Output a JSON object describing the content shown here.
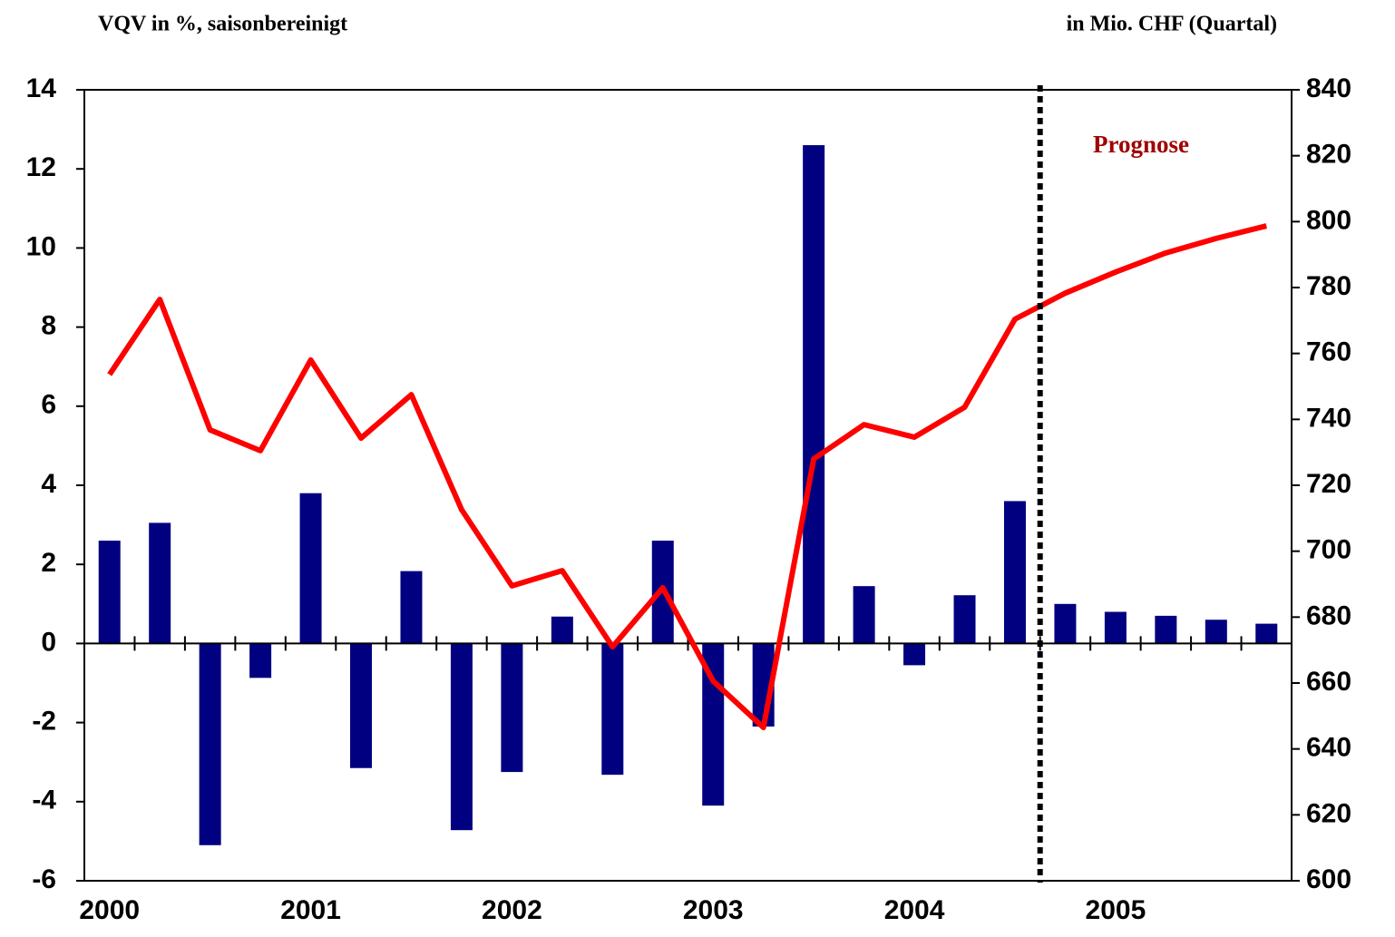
{
  "chart_data": {
    "type": "bar_line",
    "y_axis_label": "VQV in %, saisonbereinigt",
    "y2_axis_label": "in Mio. CHF (Quartal)",
    "annotation": "Prognose",
    "categories": [
      "2000",
      null,
      null,
      null,
      "2001",
      null,
      null,
      null,
      "2002",
      null,
      null,
      null,
      "2003",
      null,
      null,
      null,
      "2004",
      null,
      null,
      null,
      "2005",
      null,
      null,
      null
    ],
    "series": [
      {
        "type": "bar",
        "color": "#000080",
        "values": [
          2.6,
          3.05,
          -5.1,
          -0.87,
          3.8,
          -3.15,
          1.83,
          -4.72,
          -3.25,
          0.68,
          -3.32,
          2.6,
          -4.1,
          -2.1,
          12.6,
          1.45,
          -0.55,
          1.22,
          3.6,
          1.0,
          0.8,
          0.7,
          0.6,
          0.5
        ]
      },
      {
        "type": "line",
        "axis": "y2",
        "color": "#ff0000",
        "values": [
          753.6,
          776.4,
          736.8,
          730.5,
          758,
          734.3,
          747.5,
          712.6,
          689.5,
          694.1,
          671,
          688.9,
          660.6,
          646.5,
          728,
          738.4,
          734.6,
          743.7,
          770.4,
          778.3,
          784.7,
          790.5,
          794.9,
          798.7
        ]
      }
    ],
    "ylim": [
      -6,
      14
    ],
    "yticks": [
      -6,
      -4,
      -2,
      0,
      2,
      4,
      6,
      8,
      10,
      12,
      14
    ],
    "y2lim": [
      600,
      840
    ],
    "y2ticks": [
      600,
      620,
      640,
      660,
      680,
      700,
      720,
      740,
      760,
      780,
      800,
      820,
      840
    ],
    "annotation_color": "#a00000"
  }
}
